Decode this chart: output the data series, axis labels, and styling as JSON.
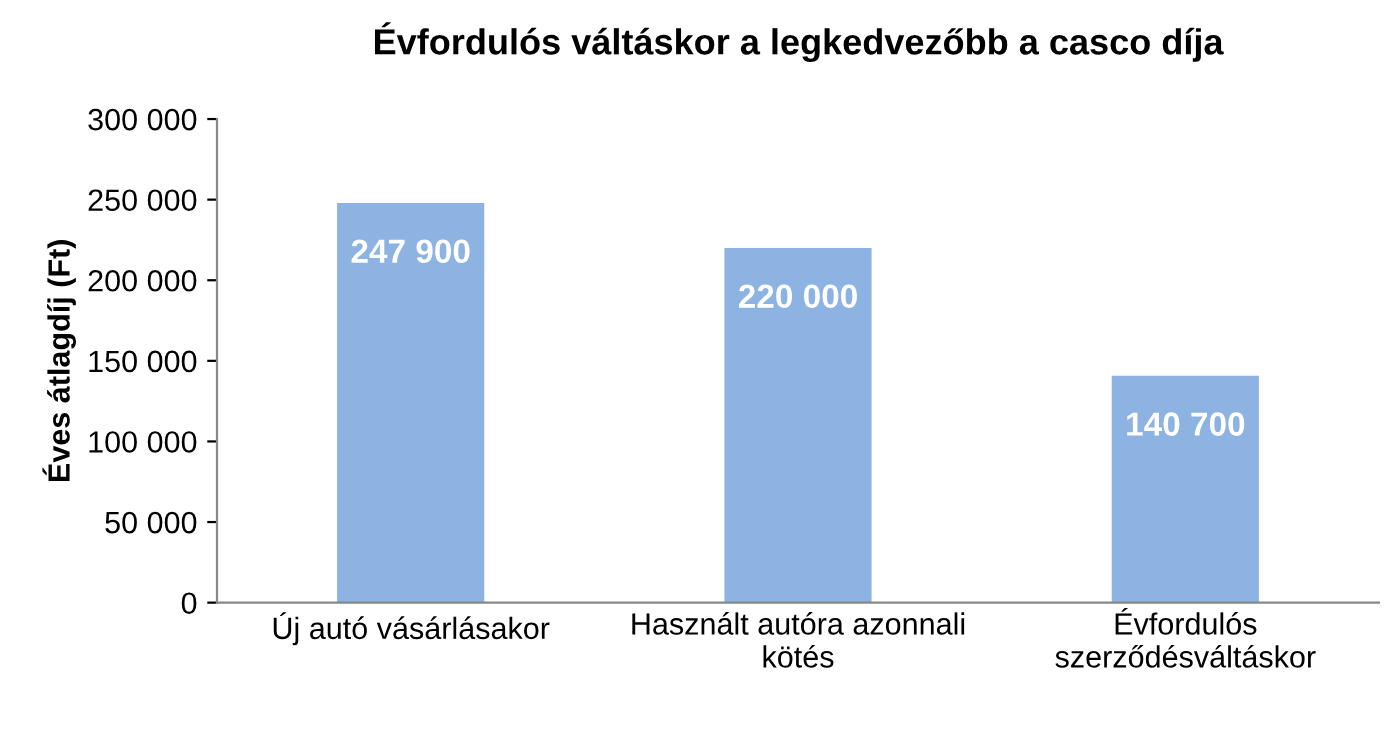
{
  "chart_data": {
    "type": "bar",
    "title": "Évfordulós váltáskor a legkedvezőbb a casco díja",
    "ylabel": "Éves átlagdíj (Ft)",
    "categories": [
      "Új autó vásárlásakor",
      "Használt autóra azonnali\nkötés",
      "Évfordulós\nszerződésváltáskor"
    ],
    "values": [
      247900,
      220000,
      140700
    ],
    "value_labels": [
      "247 900",
      "220 000",
      "140 700"
    ],
    "color": "#8db3e2",
    "ylim": [
      0,
      300000
    ],
    "yticks": [
      {
        "value": 0,
        "label": "0"
      },
      {
        "value": 50000,
        "label": "50 000"
      },
      {
        "value": 100000,
        "label": "100 000"
      },
      {
        "value": 150000,
        "label": "150 000"
      },
      {
        "value": 200000,
        "label": "200 000"
      },
      {
        "value": 250000,
        "label": "250 000"
      },
      {
        "value": 300000,
        "label": "300 000"
      }
    ],
    "grid": false,
    "legend": false
  }
}
